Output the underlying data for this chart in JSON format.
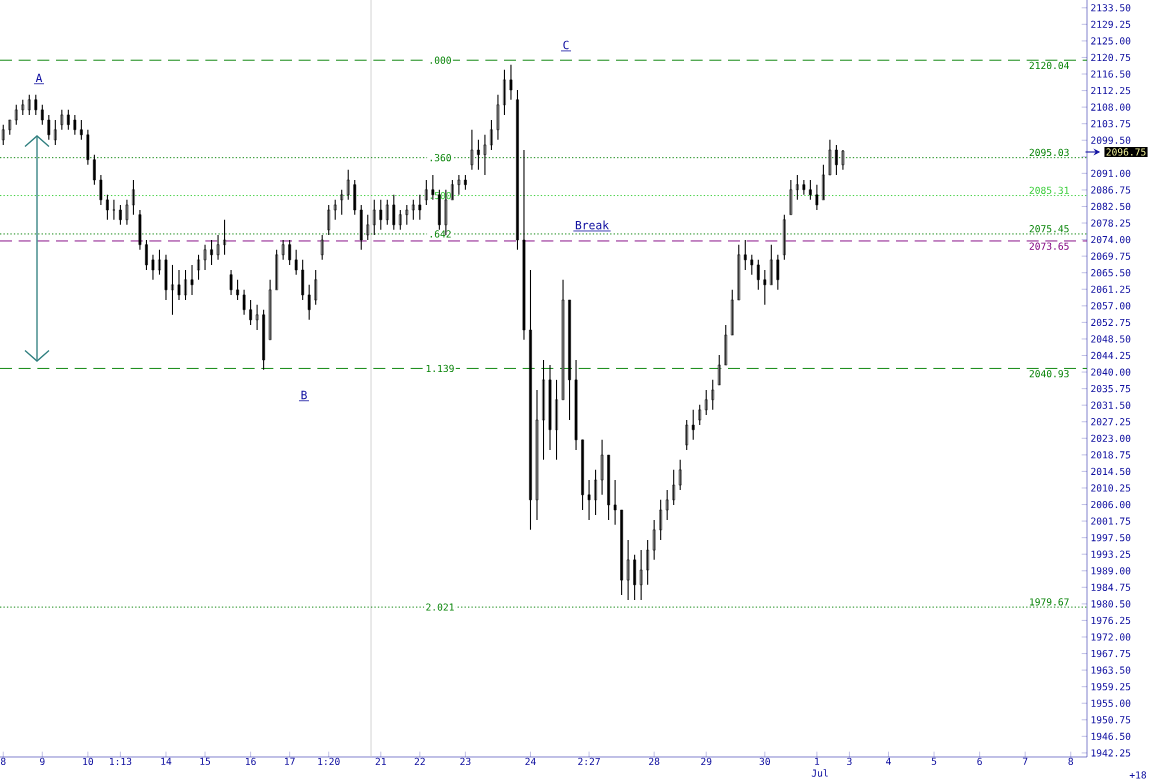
{
  "chart_data": {
    "type": "candlestick",
    "categories": [
      "8",
      null,
      null,
      null,
      null,
      null,
      "9",
      null,
      null,
      null,
      null,
      null,
      null,
      "10",
      null,
      null,
      null,
      null,
      "1:13",
      null,
      null,
      null,
      null,
      null,
      null,
      "14",
      null,
      null,
      null,
      null,
      null,
      "15",
      null,
      null,
      null,
      null,
      null,
      null,
      "16",
      null,
      null,
      null,
      null,
      null,
      "17",
      null,
      null,
      null,
      null,
      null,
      "1:20",
      null,
      null,
      null,
      null,
      null,
      null,
      null,
      "21",
      null,
      null,
      null,
      null,
      null,
      "22",
      null,
      null,
      null,
      null,
      null,
      null,
      "23",
      null,
      null,
      null,
      null,
      null,
      null,
      null,
      null,
      null,
      "24",
      null,
      null,
      null,
      null,
      null,
      null,
      null,
      null,
      "2:27",
      null,
      null,
      null,
      null,
      null,
      null,
      null,
      null,
      null,
      "28",
      null,
      null,
      null,
      null,
      null,
      null,
      null,
      "29",
      null,
      null,
      null,
      null,
      null,
      null,
      null,
      null,
      "30",
      null,
      null,
      null,
      null,
      null,
      null,
      null,
      "1",
      null,
      null,
      null,
      null,
      "3",
      null,
      null,
      null,
      null,
      null,
      "4",
      null,
      null,
      null,
      null,
      null,
      null,
      "5",
      null,
      null,
      null,
      null,
      null,
      null,
      "6",
      null,
      null,
      null,
      null,
      null,
      null,
      "7",
      null,
      null,
      null,
      null,
      null,
      null,
      "8",
      null,
      null
    ],
    "ohlc": [
      [
        2099.6,
        2103.5,
        2098.3,
        2102.2
      ],
      [
        2102.2,
        2104.7,
        2100.9,
        2104.7
      ],
      [
        2104.7,
        2108.6,
        2103.5,
        2107.3
      ],
      [
        2107.3,
        2109.9,
        2106.0,
        2108.6
      ],
      [
        2107.3,
        2111.2,
        2106.0,
        2109.9
      ],
      [
        2109.9,
        2111.2,
        2106.0,
        2107.3
      ],
      [
        2107.3,
        2108.6,
        2103.5,
        2104.7
      ],
      [
        2104.7,
        2106.0,
        2099.6,
        2100.9
      ],
      [
        2099.6,
        2104.7,
        2098.3,
        2102.2
      ],
      [
        2103.5,
        2107.3,
        2102.2,
        2106.0
      ],
      [
        2106.0,
        2107.3,
        2102.2,
        2103.5
      ],
      [
        2104.7,
        2106.0,
        2100.9,
        2102.2
      ],
      [
        2102.2,
        2104.7,
        2099.6,
        2100.9
      ],
      [
        2100.9,
        2102.2,
        2093.2,
        2094.5
      ],
      [
        2094.5,
        2095.8,
        2088.1,
        2089.3
      ],
      [
        2089.3,
        2090.6,
        2082.9,
        2084.2
      ],
      [
        2084.2,
        2085.5,
        2079.1,
        2081.6
      ],
      [
        2081.6,
        2084.2,
        2079.1,
        2081.6
      ],
      [
        2081.6,
        2082.9,
        2077.8,
        2079.1
      ],
      [
        2079.1,
        2084.2,
        2077.8,
        2082.9
      ],
      [
        2082.9,
        2089.3,
        2080.4,
        2086.8
      ],
      [
        2080.4,
        2081.6,
        2071.4,
        2072.7
      ],
      [
        2072.7,
        2073.9,
        2066.2,
        2067.5
      ],
      [
        2068.8,
        2070.1,
        2063.7,
        2066.2
      ],
      [
        2066.2,
        2071.4,
        2065.0,
        2068.8
      ],
      [
        2068.8,
        2070.1,
        2058.5,
        2061.1
      ],
      [
        2061.1,
        2067.5,
        2054.7,
        2062.4
      ],
      [
        2062.4,
        2066.2,
        2058.5,
        2059.8
      ],
      [
        2059.8,
        2066.2,
        2058.5,
        2063.7
      ],
      [
        2063.7,
        2067.5,
        2059.8,
        2062.4
      ],
      [
        2066.2,
        2070.1,
        2063.7,
        2068.8
      ],
      [
        2068.8,
        2072.7,
        2066.2,
        2071.4
      ],
      [
        2071.4,
        2073.9,
        2067.5,
        2070.1
      ],
      [
        2070.1,
        2075.2,
        2068.8,
        2072.7
      ],
      [
        2072.7,
        2079.1,
        2070.1,
        2073.9
      ],
      [
        2065.0,
        2066.2,
        2059.8,
        2061.1
      ],
      [
        2061.1,
        2063.7,
        2058.5,
        2059.8
      ],
      [
        2059.8,
        2061.1,
        2054.7,
        2056.0
      ],
      [
        2056.0,
        2058.5,
        2052.1,
        2053.4
      ],
      [
        2053.4,
        2057.3,
        2050.8,
        2054.7
      ],
      [
        2054.7,
        2056.0,
        2040.6,
        2043.1
      ],
      [
        2048.3,
        2063.7,
        2048.3,
        2061.1
      ],
      [
        2061.1,
        2071.4,
        2061.1,
        2070.1
      ],
      [
        2070.1,
        2073.9,
        2068.8,
        2072.7
      ],
      [
        2072.7,
        2073.9,
        2067.5,
        2068.8
      ],
      [
        2068.8,
        2071.4,
        2065.0,
        2066.2
      ],
      [
        2066.2,
        2068.8,
        2058.5,
        2059.8
      ],
      [
        2059.8,
        2062.4,
        2053.4,
        2056.0
      ],
      [
        2058.5,
        2066.2,
        2057.3,
        2063.7
      ],
      [
        2070.1,
        2075.2,
        2068.8,
        2073.9
      ],
      [
        2076.5,
        2082.9,
        2075.2,
        2081.6
      ],
      [
        2081.6,
        2084.2,
        2079.1,
        2082.9
      ],
      [
        2084.2,
        2086.8,
        2080.4,
        2085.5
      ],
      [
        2085.5,
        2091.9,
        2084.2,
        2089.3
      ],
      [
        2088.1,
        2089.3,
        2080.4,
        2081.6
      ],
      [
        2081.6,
        2082.9,
        2071.4,
        2073.9
      ],
      [
        2075.2,
        2080.4,
        2073.9,
        2077.8
      ],
      [
        2077.8,
        2084.2,
        2075.2,
        2081.6
      ],
      [
        2081.6,
        2084.2,
        2076.5,
        2079.1
      ],
      [
        2079.1,
        2084.2,
        2077.8,
        2082.9
      ],
      [
        2082.9,
        2085.5,
        2076.5,
        2077.8
      ],
      [
        2077.8,
        2081.6,
        2076.5,
        2080.4
      ],
      [
        2080.4,
        2082.9,
        2077.8,
        2081.6
      ],
      [
        2081.6,
        2084.2,
        2079.1,
        2082.9
      ],
      [
        2082.9,
        2085.5,
        2079.1,
        2081.6
      ],
      [
        2084.2,
        2089.3,
        2082.9,
        2086.8
      ],
      [
        2086.8,
        2090.6,
        2084.2,
        2085.5
      ],
      [
        2085.5,
        2086.8,
        2076.5,
        2077.8
      ],
      [
        2077.8,
        2086.8,
        2075.2,
        2084.2
      ],
      [
        2084.2,
        2089.3,
        2084.2,
        2088.1
      ],
      [
        2088.1,
        2090.6,
        2085.5,
        2089.3
      ],
      [
        2089.3,
        2090.6,
        2086.8,
        2088.1
      ],
      [
        2093.2,
        2102.2,
        2091.9,
        2097.0
      ],
      [
        2097.0,
        2099.6,
        2091.9,
        2095.8
      ],
      [
        2095.8,
        2100.9,
        2090.6,
        2098.3
      ],
      [
        2098.3,
        2104.7,
        2097.0,
        2102.2
      ],
      [
        2102.2,
        2111.2,
        2099.6,
        2108.6
      ],
      [
        2108.6,
        2117.6,
        2106.0,
        2115.0
      ],
      [
        2115.0,
        2118.9,
        2109.9,
        2112.4
      ],
      [
        2109.9,
        2112.4,
        2071.4,
        2073.9
      ],
      [
        2073.9,
        2097.0,
        2048.3,
        2050.8
      ],
      [
        2050.8,
        2066.2,
        1999.5,
        2007.2
      ],
      [
        2007.2,
        2035.4,
        2002.0,
        2027.7
      ],
      [
        2027.7,
        2043.1,
        2017.5,
        2038.0
      ],
      [
        2038.0,
        2041.8,
        2020.0,
        2025.2
      ],
      [
        2025.2,
        2038.0,
        2017.5,
        2032.9
      ],
      [
        2032.9,
        2063.7,
        2032.9,
        2058.5
      ],
      [
        2058.5,
        2058.5,
        2027.7,
        2038.0
      ],
      [
        2038.0,
        2043.1,
        2020.0,
        2022.6
      ],
      [
        2022.6,
        2022.6,
        2004.6,
        2008.5
      ],
      [
        2008.5,
        2012.3,
        2002.0,
        2007.2
      ],
      [
        2007.2,
        2014.9,
        2003.3,
        2012.3
      ],
      [
        2012.3,
        2022.6,
        2008.5,
        2018.7
      ],
      [
        2018.7,
        2018.7,
        2002.0,
        2005.9
      ],
      [
        2005.9,
        2012.3,
        2000.8,
        2004.6
      ],
      [
        2004.6,
        2004.6,
        1982.8,
        1986.6
      ],
      [
        1986.6,
        1996.9,
        1981.5,
        1991.8
      ],
      [
        1991.8,
        1993.1,
        1981.5,
        1985.4
      ],
      [
        1985.4,
        1994.3,
        1981.5,
        1989.2
      ],
      [
        1989.2,
        1996.9,
        1985.4,
        1994.3
      ],
      [
        1994.3,
        2002.0,
        1991.8,
        1999.5
      ],
      [
        1999.5,
        2007.2,
        1996.9,
        2004.6
      ],
      [
        2004.6,
        2009.7,
        2002.0,
        2007.2
      ],
      [
        2007.2,
        2014.9,
        2005.9,
        2011.0
      ],
      [
        2011.0,
        2017.5,
        2009.7,
        2014.9
      ],
      [
        2021.3,
        2027.7,
        2020.0,
        2026.4
      ],
      [
        2026.4,
        2030.3,
        2022.6,
        2025.2
      ],
      [
        2027.7,
        2031.6,
        2026.4,
        2030.3
      ],
      [
        2030.3,
        2035.4,
        2029.0,
        2032.9
      ],
      [
        2032.9,
        2038.0,
        2030.3,
        2035.4
      ],
      [
        2036.7,
        2044.4,
        2036.7,
        2041.8
      ],
      [
        2041.8,
        2052.1,
        2041.8,
        2049.5
      ],
      [
        2049.5,
        2061.1,
        2049.5,
        2058.5
      ],
      [
        2058.5,
        2072.7,
        2058.5,
        2070.1
      ],
      [
        2070.1,
        2073.9,
        2066.2,
        2068.8
      ],
      [
        2068.8,
        2070.1,
        2065.0,
        2067.5
      ],
      [
        2067.5,
        2068.8,
        2061.1,
        2063.7
      ],
      [
        2063.7,
        2066.2,
        2057.3,
        2062.4
      ],
      [
        2062.4,
        2072.7,
        2062.4,
        2068.8
      ],
      [
        2068.8,
        2070.1,
        2061.1,
        2063.7
      ],
      [
        2070.1,
        2080.4,
        2068.8,
        2079.1
      ],
      [
        2080.4,
        2089.3,
        2080.4,
        2086.8
      ],
      [
        2086.8,
        2090.6,
        2084.2,
        2088.1
      ],
      [
        2088.1,
        2089.3,
        2085.5,
        2086.8
      ],
      [
        2086.8,
        2089.3,
        2084.2,
        2085.5
      ],
      [
        2085.5,
        2088.1,
        2081.6,
        2082.9
      ],
      [
        2084.2,
        2093.2,
        2084.2,
        2090.6
      ],
      [
        2090.6,
        2099.6,
        2090.6,
        2097.0
      ],
      [
        2097.0,
        2098.3,
        2090.6,
        2093.2
      ],
      [
        2093.2,
        2097.0,
        2091.9,
        2096.75
      ],
      null,
      null,
      null,
      null,
      null,
      null,
      null,
      null,
      null,
      null,
      null,
      null,
      null,
      null,
      null,
      null,
      null,
      null,
      null,
      null,
      null,
      null,
      null,
      null,
      null,
      null,
      null,
      null,
      null,
      null,
      null,
      null,
      null,
      null,
      null,
      null,
      null
    ],
    "ylim": [
      1941.2,
      2135.5
    ],
    "yticks": [
      {
        "value": 1942.25,
        "label": "1942.25"
      },
      {
        "value": 1946.5,
        "label": "1946.50"
      },
      {
        "value": 1950.75,
        "label": "1950.75"
      },
      {
        "value": 1955.0,
        "label": "1955.00"
      },
      {
        "value": 1959.25,
        "label": "1959.25"
      },
      {
        "value": 1963.5,
        "label": "1963.50"
      },
      {
        "value": 1967.75,
        "label": "1967.75"
      },
      {
        "value": 1972.0,
        "label": "1972.00"
      },
      {
        "value": 1976.25,
        "label": "1976.25"
      },
      {
        "value": 1980.5,
        "label": "1980.50"
      },
      {
        "value": 1984.75,
        "label": "1984.75"
      },
      {
        "value": 1989.0,
        "label": "1989.00"
      },
      {
        "value": 1993.25,
        "label": "1993.25"
      },
      {
        "value": 1997.5,
        "label": "1997.50"
      },
      {
        "value": 2001.75,
        "label": "2001.75"
      },
      {
        "value": 2006.0,
        "label": "2006.00"
      },
      {
        "value": 2010.25,
        "label": "2010.25"
      },
      {
        "value": 2014.5,
        "label": "2014.50"
      },
      {
        "value": 2018.75,
        "label": "2018.75"
      },
      {
        "value": 2023.0,
        "label": "2023.00"
      },
      {
        "value": 2027.25,
        "label": "2027.25"
      },
      {
        "value": 2031.5,
        "label": "2031.50"
      },
      {
        "value": 2035.75,
        "label": "2035.75"
      },
      {
        "value": 2040.0,
        "label": "2040.00"
      },
      {
        "value": 2044.25,
        "label": "2044.25"
      },
      {
        "value": 2048.5,
        "label": "2048.50"
      },
      {
        "value": 2052.75,
        "label": "2052.75"
      },
      {
        "value": 2057.0,
        "label": "2057.00"
      },
      {
        "value": 2061.25,
        "label": "2061.25"
      },
      {
        "value": 2065.5,
        "label": "2065.50"
      },
      {
        "value": 2069.75,
        "label": "2069.75"
      },
      {
        "value": 2074.0,
        "label": "2074.00"
      },
      {
        "value": 2078.25,
        "label": "2078.25"
      },
      {
        "value": 2082.5,
        "label": "2082.50"
      },
      {
        "value": 2086.75,
        "label": "2086.75"
      },
      {
        "value": 2091.0,
        "label": "2091.00"
      },
      {
        "value": 2095.25,
        "label": null
      },
      {
        "value": 2099.5,
        "label": "2099.50"
      },
      {
        "value": 2103.75,
        "label": "2103.75"
      },
      {
        "value": 2108.0,
        "label": "2108.00"
      },
      {
        "value": 2112.25,
        "label": "2112.25"
      },
      {
        "value": 2116.5,
        "label": "2116.50"
      },
      {
        "value": 2120.75,
        "label": "2120.75"
      },
      {
        "value": 2125.0,
        "label": "2125.00"
      },
      {
        "value": 2129.25,
        "label": "2129.25"
      },
      {
        "value": 2133.5,
        "label": "2133.50"
      }
    ],
    "ref_lines": [
      {
        "axis": "y",
        "value": 2120.04,
        "label": "2120.04",
        "color": "#008000",
        "line_style": "dashed"
      },
      {
        "axis": "y",
        "value": 2095.03,
        "label": "2095.03",
        "color": "#008000",
        "line_style": "dotted"
      },
      {
        "axis": "y",
        "value": 2085.31,
        "label": "2085.31",
        "color": "#33cc33",
        "line_style": "dotted"
      },
      {
        "axis": "y",
        "value": 2075.45,
        "label": "2075.45",
        "color": "#008000",
        "line_style": "dotted"
      },
      {
        "axis": "y",
        "value": 2073.65,
        "label": "2073.65",
        "color": "#800080",
        "line_style": "dashed"
      },
      {
        "axis": "y",
        "value": 2040.93,
        "label": "2040.93",
        "color": "#008000",
        "line_style": "dashed"
      },
      {
        "axis": "y",
        "value": 1979.67,
        "label": "1979.67",
        "color": "#008000",
        "line_style": "dotted"
      }
    ],
    "annotations": [
      "A",
      "B",
      "C",
      "Break",
      {
        "text": ".000",
        "y": 2120.04
      },
      {
        "text": ".360",
        "y": 2095.03
      },
      {
        "text": ".500",
        "y": 2085.31
      },
      {
        "text": ".642",
        "y": 2075.45
      },
      {
        "text": "1.139",
        "y": 2040.93
      },
      {
        "text": "2.021",
        "y": 1979.67
      },
      "2096.75",
      "Jul",
      "+18"
    ]
  }
}
